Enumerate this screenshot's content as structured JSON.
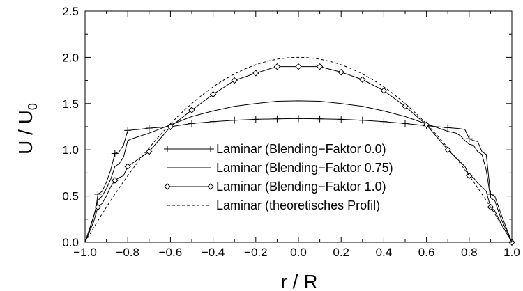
{
  "chart_data": {
    "type": "line",
    "xlabel": "r / R",
    "ylabel": "U / U",
    "ylabel_subscript": "0",
    "xlim": [
      -1.0,
      1.0
    ],
    "ylim": [
      0.0,
      2.5
    ],
    "x_ticks": [
      "−1.0",
      "−0.8",
      "−0.6",
      "−0.4",
      "−0.2",
      "0.0",
      "0.2",
      "0.4",
      "0.6",
      "0.8",
      "1.0"
    ],
    "y_ticks": [
      "0.0",
      "0.5",
      "1.0",
      "1.5",
      "2.0",
      "2.5"
    ],
    "grid": false,
    "legend_position": "lower-center",
    "series": [
      {
        "name": "Laminar (Blending−Faktor 0.0)",
        "marker": "plus",
        "linestyle": "solid",
        "color": "#000000",
        "points": [
          [
            -1.0,
            0.0
          ],
          [
            -0.97,
            0.2
          ],
          [
            -0.95,
            0.35
          ],
          [
            -0.94,
            0.52
          ],
          [
            -0.92,
            0.55
          ],
          [
            -0.9,
            0.65
          ],
          [
            -0.88,
            0.78
          ],
          [
            -0.86,
            0.96
          ],
          [
            -0.84,
            0.98
          ],
          [
            -0.82,
            1.05
          ],
          [
            -0.8,
            1.21
          ],
          [
            -0.75,
            1.22
          ],
          [
            -0.7,
            1.235
          ],
          [
            -0.6,
            1.25
          ],
          [
            -0.5,
            1.285
          ],
          [
            -0.4,
            1.305
          ],
          [
            -0.3,
            1.32
          ],
          [
            -0.2,
            1.33
          ],
          [
            -0.1,
            1.335
          ],
          [
            0.0,
            1.338
          ],
          [
            0.1,
            1.335
          ],
          [
            0.2,
            1.33
          ],
          [
            0.3,
            1.32
          ],
          [
            0.4,
            1.305
          ],
          [
            0.5,
            1.285
          ],
          [
            0.6,
            1.26
          ],
          [
            0.7,
            1.24
          ],
          [
            0.75,
            1.23
          ],
          [
            0.78,
            1.22
          ],
          [
            0.8,
            1.12
          ],
          [
            0.82,
            1.1
          ],
          [
            0.84,
            1.09
          ],
          [
            0.86,
            0.98
          ],
          [
            0.88,
            0.95
          ],
          [
            0.9,
            0.52
          ],
          [
            0.92,
            0.5
          ],
          [
            0.95,
            0.3
          ],
          [
            0.98,
            0.12
          ],
          [
            1.0,
            0.0
          ]
        ],
        "marker_x": [
          -0.94,
          -0.86,
          -0.8,
          -0.7,
          -0.6,
          -0.5,
          -0.4,
          -0.3,
          -0.2,
          -0.1,
          0.0,
          0.1,
          0.2,
          0.3,
          0.4,
          0.5,
          0.6,
          0.7,
          0.8,
          0.9,
          1.0
        ]
      },
      {
        "name": "Laminar (Blending−Faktor 0.75)",
        "marker": "none",
        "linestyle": "solid",
        "color": "#000000",
        "points": [
          [
            -1.0,
            0.0
          ],
          [
            -0.96,
            0.28
          ],
          [
            -0.94,
            0.45
          ],
          [
            -0.92,
            0.5
          ],
          [
            -0.9,
            0.58
          ],
          [
            -0.88,
            0.68
          ],
          [
            -0.86,
            0.82
          ],
          [
            -0.84,
            0.85
          ],
          [
            -0.82,
            0.92
          ],
          [
            -0.8,
            1.1
          ],
          [
            -0.78,
            1.12
          ],
          [
            -0.74,
            1.15
          ],
          [
            -0.7,
            1.18
          ],
          [
            -0.6,
            1.27
          ],
          [
            -0.5,
            1.36
          ],
          [
            -0.4,
            1.42
          ],
          [
            -0.3,
            1.47
          ],
          [
            -0.2,
            1.5
          ],
          [
            -0.1,
            1.525
          ],
          [
            0.0,
            1.53
          ],
          [
            0.1,
            1.525
          ],
          [
            0.2,
            1.5
          ],
          [
            0.3,
            1.47
          ],
          [
            0.4,
            1.42
          ],
          [
            0.5,
            1.36
          ],
          [
            0.6,
            1.28
          ],
          [
            0.7,
            1.2
          ],
          [
            0.74,
            1.18
          ],
          [
            0.76,
            1.15
          ],
          [
            0.78,
            1.1
          ],
          [
            0.8,
            1.06
          ],
          [
            0.82,
            1.05
          ],
          [
            0.84,
            0.98
          ],
          [
            0.86,
            0.95
          ],
          [
            0.88,
            0.78
          ],
          [
            0.9,
            0.48
          ],
          [
            0.92,
            0.45
          ],
          [
            0.95,
            0.25
          ],
          [
            0.98,
            0.1
          ],
          [
            1.0,
            0.0
          ]
        ]
      },
      {
        "name": "Laminar (Blending−Faktor 1.0)",
        "marker": "diamond",
        "linestyle": "solid",
        "color": "#000000",
        "points": [
          [
            -1.0,
            0.0
          ],
          [
            -0.96,
            0.22
          ],
          [
            -0.94,
            0.38
          ],
          [
            -0.92,
            0.42
          ],
          [
            -0.9,
            0.5
          ],
          [
            -0.88,
            0.6
          ],
          [
            -0.86,
            0.67
          ],
          [
            -0.84,
            0.7
          ],
          [
            -0.82,
            0.72
          ],
          [
            -0.8,
            0.82
          ],
          [
            -0.7,
            0.98
          ],
          [
            -0.6,
            1.25
          ],
          [
            -0.5,
            1.43
          ],
          [
            -0.4,
            1.6
          ],
          [
            -0.3,
            1.75
          ],
          [
            -0.2,
            1.83
          ],
          [
            -0.1,
            1.9
          ],
          [
            0.0,
            1.9
          ],
          [
            0.1,
            1.9
          ],
          [
            0.2,
            1.84
          ],
          [
            0.3,
            1.76
          ],
          [
            0.4,
            1.64
          ],
          [
            0.5,
            1.47
          ],
          [
            0.6,
            1.27
          ],
          [
            0.7,
            1.0
          ],
          [
            0.78,
            0.82
          ],
          [
            0.8,
            0.72
          ],
          [
            0.82,
            0.7
          ],
          [
            0.84,
            0.64
          ],
          [
            0.86,
            0.6
          ],
          [
            0.88,
            0.55
          ],
          [
            0.9,
            0.38
          ],
          [
            0.92,
            0.34
          ],
          [
            0.95,
            0.2
          ],
          [
            0.98,
            0.08
          ],
          [
            1.0,
            0.0
          ]
        ],
        "marker_x": [
          -0.94,
          -0.86,
          -0.8,
          -0.7,
          -0.6,
          -0.5,
          -0.4,
          -0.3,
          -0.2,
          -0.1,
          0.0,
          0.1,
          0.2,
          0.3,
          0.4,
          0.5,
          0.6,
          0.7,
          0.8,
          0.9,
          1.0
        ]
      },
      {
        "name": "Laminar (theoretisches Profil)",
        "marker": "none",
        "linestyle": "dashed",
        "color": "#000000",
        "function": "2*(1-x^2)"
      }
    ]
  }
}
